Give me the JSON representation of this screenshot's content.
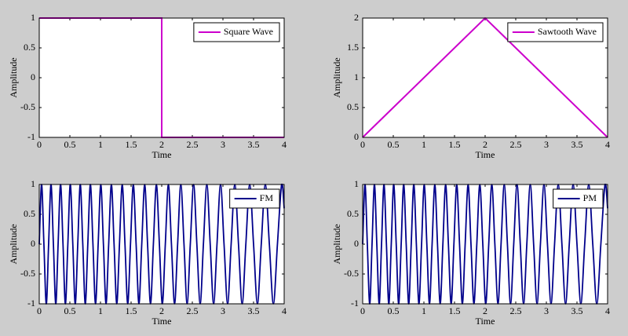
{
  "chart_data": [
    {
      "type": "line",
      "x": [
        0,
        2,
        2,
        4
      ],
      "series": [
        {
          "name": "Square Wave",
          "color": "#cc00cc",
          "values": [
            1,
            1,
            -1,
            -1
          ]
        }
      ],
      "xlabel": "Time",
      "ylabel": "Amplitude",
      "xlim": [
        0,
        4
      ],
      "ylim": [
        -1,
        1
      ],
      "xticks": [
        0,
        0.5,
        1,
        1.5,
        2,
        2.5,
        3,
        3.5,
        4
      ],
      "yticks": [
        -1,
        -0.5,
        0,
        0.5,
        1
      ],
      "legend": "upper right"
    },
    {
      "type": "line",
      "x": [
        0,
        2,
        4
      ],
      "series": [
        {
          "name": "Sawtooth Wave",
          "color": "#cc00cc",
          "values": [
            0,
            2,
            0
          ]
        }
      ],
      "xlabel": "Time",
      "ylabel": "Amplitude",
      "xlim": [
        0,
        4
      ],
      "ylim": [
        0,
        2
      ],
      "xticks": [
        0,
        0.5,
        1,
        1.5,
        2,
        2.5,
        3,
        3.5,
        4
      ],
      "yticks": [
        0,
        0.5,
        1,
        1.5,
        2
      ],
      "legend": "upper right"
    },
    {
      "type": "line",
      "smooth": true,
      "x": [
        0,
        0.038,
        0.076,
        0.115,
        0.153,
        0.192,
        0.231,
        0.27,
        0.308,
        0.348,
        0.388,
        0.427,
        0.467,
        0.507,
        0.548,
        0.588,
        0.629,
        0.67,
        0.711,
        0.752,
        0.793,
        0.835,
        0.877,
        0.919,
        0.962,
        1.005,
        1.048,
        1.091,
        1.134,
        1.178,
        1.222,
        1.266,
        1.31,
        1.355,
        1.4,
        1.445,
        1.49,
        1.536,
        1.582,
        1.628,
        1.674,
        1.722,
        1.769,
        1.817,
        1.864,
        1.913,
        1.962,
        2.01,
        2.059,
        2.109,
        2.159,
        2.21,
        2.26,
        2.312,
        2.364,
        2.415,
        2.467,
        2.521,
        2.574,
        2.628,
        2.681,
        2.737,
        2.792,
        2.848,
        2.903,
        2.961,
        3.018,
        3.076,
        3.134,
        3.194,
        3.254,
        3.314,
        3.374,
        3.437,
        3.5,
        3.563,
        3.626,
        3.692,
        3.758,
        3.824,
        3.89,
        3.958,
        4
      ],
      "series": [
        {
          "name": "FM",
          "color": "#00008b",
          "values": [
            0,
            1,
            0,
            -1,
            0,
            1,
            0,
            -1,
            0,
            1,
            0,
            -1,
            0,
            1,
            0,
            -1,
            0,
            1,
            0,
            -1,
            0,
            1,
            0,
            -1,
            0,
            1,
            0,
            -1,
            0,
            1,
            0,
            -1,
            0,
            1,
            0,
            -1,
            0,
            1,
            0,
            -1,
            0,
            1,
            0,
            -1,
            0,
            1,
            0,
            -1,
            0,
            1,
            0,
            -1,
            0,
            1,
            0,
            -1,
            0,
            1,
            0,
            -1,
            0,
            1,
            0,
            -1,
            0,
            1,
            0,
            -1,
            0,
            1,
            0,
            -1,
            0,
            1,
            0,
            -1,
            0,
            1,
            0,
            -1,
            0,
            1,
            0.6
          ]
        }
      ],
      "xlabel": "Time",
      "ylabel": "Amplitude",
      "xlim": [
        0,
        4
      ],
      "ylim": [
        -1,
        1
      ],
      "xticks": [
        0,
        0.5,
        1,
        1.5,
        2,
        2.5,
        3,
        3.5,
        4
      ],
      "yticks": [
        -1,
        -0.5,
        0,
        0.5,
        1
      ],
      "legend": "upper right"
    },
    {
      "type": "line",
      "smooth": true,
      "x": [
        0,
        0.038,
        0.076,
        0.115,
        0.153,
        0.192,
        0.231,
        0.27,
        0.308,
        0.348,
        0.388,
        0.427,
        0.467,
        0.507,
        0.548,
        0.588,
        0.629,
        0.67,
        0.711,
        0.752,
        0.793,
        0.835,
        0.877,
        0.919,
        0.962,
        1.005,
        1.048,
        1.091,
        1.134,
        1.178,
        1.222,
        1.266,
        1.31,
        1.355,
        1.4,
        1.445,
        1.49,
        1.536,
        1.582,
        1.628,
        1.674,
        1.722,
        1.769,
        1.817,
        1.864,
        1.913,
        1.962,
        2.01,
        2.059,
        2.109,
        2.159,
        2.21,
        2.26,
        2.312,
        2.364,
        2.415,
        2.467,
        2.521,
        2.574,
        2.628,
        2.681,
        2.737,
        2.792,
        2.848,
        2.903,
        2.961,
        3.018,
        3.076,
        3.134,
        3.194,
        3.254,
        3.314,
        3.374,
        3.437,
        3.5,
        3.563,
        3.626,
        3.692,
        3.758,
        3.824,
        3.89,
        3.958,
        4
      ],
      "series": [
        {
          "name": "PM",
          "color": "#00008b",
          "values": [
            0,
            1,
            0,
            -1,
            0,
            1,
            0,
            -1,
            0,
            1,
            0,
            -1,
            0,
            1,
            0,
            -1,
            0,
            1,
            0,
            -1,
            0,
            1,
            0,
            -1,
            0,
            1,
            0,
            -1,
            0,
            1,
            0,
            -1,
            0,
            1,
            0,
            -1,
            0,
            1,
            0,
            -1,
            0,
            1,
            0,
            -1,
            0,
            1,
            0,
            -1,
            0,
            1,
            0,
            -1,
            0,
            1,
            0,
            -1,
            0,
            1,
            0,
            -1,
            0,
            1,
            0,
            -1,
            0,
            1,
            0,
            -1,
            0,
            1,
            0,
            -1,
            0,
            1,
            0,
            -1,
            0,
            1,
            0,
            -1,
            0,
            1,
            0.6
          ]
        }
      ],
      "xlabel": "Time",
      "ylabel": "Amplitude",
      "xlim": [
        0,
        4
      ],
      "ylim": [
        -1,
        1
      ],
      "xticks": [
        0,
        0.5,
        1,
        1.5,
        2,
        2.5,
        3,
        3.5,
        4
      ],
      "yticks": [
        -1,
        -0.5,
        0,
        0.5,
        1
      ],
      "legend": "upper right"
    }
  ]
}
